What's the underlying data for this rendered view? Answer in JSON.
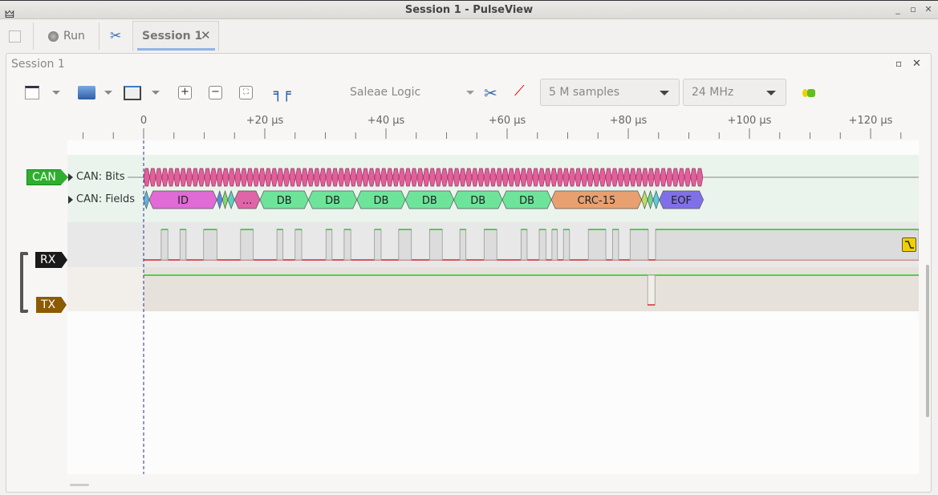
{
  "window": {
    "title": "Session 1 - PulseView"
  },
  "tabbar": {
    "run_label": "Run",
    "session_tab": "Session 1"
  },
  "session": {
    "title": "Session 1"
  },
  "toolbar": {
    "device": "Saleae Logic",
    "samples": "5 M samples",
    "samplerate": "24 MHz",
    "icons": [
      "new-view-icon",
      "open-icon",
      "save-icon",
      "zoom-in-icon",
      "zoom-out-icon",
      "zoom-fit-icon",
      "cursors-icon",
      "device-config-icon",
      "probe-icon",
      "decoder-icon"
    ]
  },
  "ruler": {
    "unit": "µs",
    "labels": [
      "0",
      "+20 µs",
      "+40 µs",
      "+60 µs",
      "+80 µs",
      "+100 µs",
      "+120 µs"
    ],
    "major_step": 20,
    "minor_step": 5,
    "range": [
      -10,
      128
    ]
  },
  "traces": {
    "can": {
      "badge": "CAN",
      "color": "#2fae2f",
      "rows": [
        "CAN: Bits",
        "CAN: Fields"
      ]
    },
    "rx": {
      "badge": "RX",
      "color": "#1a1a1a"
    },
    "tx": {
      "badge": "TX",
      "color": "#8c5a00"
    }
  },
  "can_bits": {
    "start": 0,
    "end": 92.3,
    "count": 92,
    "color": "#e0609a"
  },
  "can_fields": [
    {
      "label": "",
      "start": 0,
      "end": 0.9,
      "color": "#5bb8e0"
    },
    {
      "label": "ID",
      "start": 0.9,
      "end": 12.1,
      "color": "#e06ad6"
    },
    {
      "label": "",
      "start": 12.1,
      "end": 13.0,
      "color": "#5a8de0"
    },
    {
      "label": "",
      "start": 13.0,
      "end": 13.9,
      "color": "#7ed86a"
    },
    {
      "label": "",
      "start": 13.9,
      "end": 15.0,
      "color": "#5cd0c0"
    },
    {
      "label": "...",
      "start": 15.0,
      "end": 19.2,
      "color": "#e064a8"
    },
    {
      "label": "DB",
      "start": 19.2,
      "end": 27.2,
      "color": "#6ee49a"
    },
    {
      "label": "DB",
      "start": 27.2,
      "end": 35.2,
      "color": "#6ee49a"
    },
    {
      "label": "DB",
      "start": 35.2,
      "end": 43.2,
      "color": "#6ee49a"
    },
    {
      "label": "DB",
      "start": 43.2,
      "end": 51.2,
      "color": "#6ee49a"
    },
    {
      "label": "DB",
      "start": 51.2,
      "end": 59.2,
      "color": "#6ee49a"
    },
    {
      "label": "DB",
      "start": 59.2,
      "end": 67.3,
      "color": "#6ee49a"
    },
    {
      "label": "CRC-15",
      "start": 67.3,
      "end": 82.2,
      "color": "#e8a070"
    },
    {
      "label": "",
      "start": 82.2,
      "end": 83.2,
      "color": "#b8e060"
    },
    {
      "label": "",
      "start": 83.2,
      "end": 84.1,
      "color": "#6ed890"
    },
    {
      "label": "",
      "start": 84.1,
      "end": 85.1,
      "color": "#5ccce0"
    },
    {
      "label": "EOF",
      "start": 85.1,
      "end": 92.4,
      "color": "#8070e8"
    }
  ],
  "rx_high": [
    [
      2.9,
      4
    ],
    [
      6,
      7
    ],
    [
      9.9,
      12.1
    ],
    [
      16,
      18.1
    ],
    [
      22,
      23
    ],
    [
      25,
      26.1
    ],
    [
      30.1,
      31.1
    ],
    [
      33.1,
      34.2
    ],
    [
      38.1,
      39.2
    ],
    [
      42.1,
      44.2
    ],
    [
      47.2,
      49.3
    ],
    [
      52.2,
      53.2
    ],
    [
      56.2,
      58.3
    ],
    [
      62.3,
      63.3
    ],
    [
      65.3,
      66.4
    ],
    [
      67.4,
      68.3
    ],
    [
      69.3,
      70.3
    ],
    [
      73.4,
      76.3
    ],
    [
      77.4,
      78.4
    ],
    [
      80.3,
      83.3
    ],
    [
      84.5,
      128
    ]
  ],
  "tx_low": [
    [
      83.2,
      84.4
    ]
  ],
  "colors": {
    "high": "#00c000",
    "low": "#d00000"
  }
}
